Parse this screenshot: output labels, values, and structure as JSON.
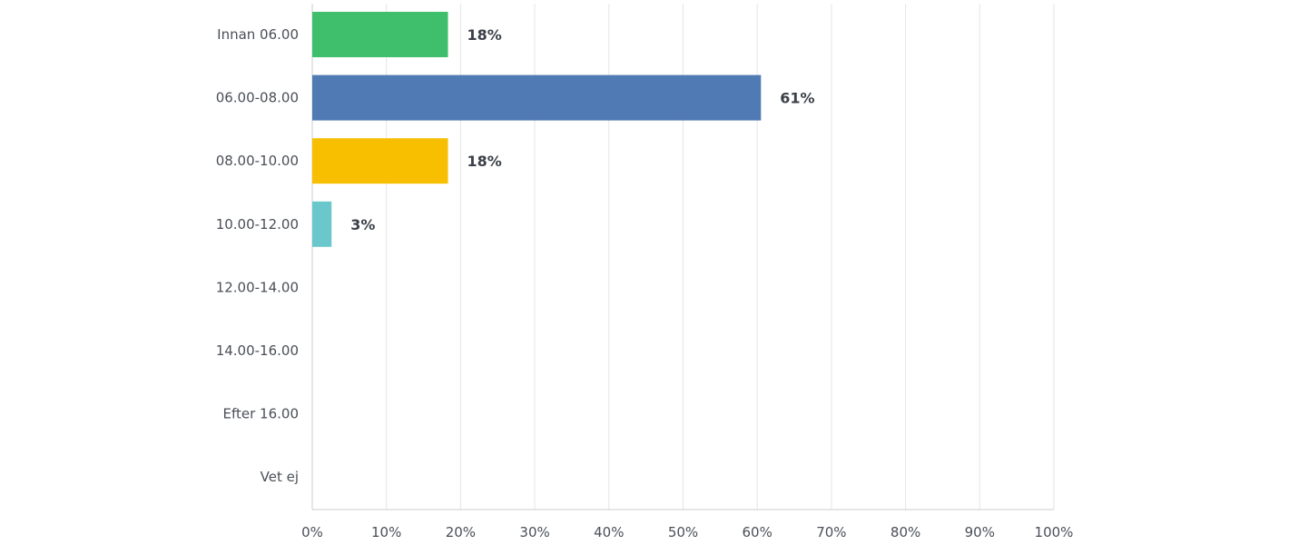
{
  "chart_data": {
    "type": "bar",
    "orientation": "horizontal",
    "categories": [
      "Innan 06.00",
      "06.00-08.00",
      "08.00-10.00",
      "10.00-12.00",
      "12.00-14.00",
      "14.00-16.00",
      "Efter 16.00",
      "Vet ej"
    ],
    "values": [
      18.3,
      60.5,
      18.3,
      2.6,
      0,
      0,
      0,
      0
    ],
    "value_labels": [
      "18%",
      "61%",
      "18%",
      "3%",
      "",
      "",
      "",
      ""
    ],
    "colors": [
      "#3fbf6b",
      "#4f7ab3",
      "#f8bf00",
      "#6ac7cb",
      "#cccccc",
      "#cccccc",
      "#cccccc",
      "#cccccc"
    ],
    "x_ticks": [
      "0%",
      "10%",
      "20%",
      "30%",
      "40%",
      "50%",
      "60%",
      "70%",
      "80%",
      "90%",
      "100%"
    ],
    "xlim": [
      0,
      100
    ],
    "grid": true,
    "legend": "none"
  }
}
